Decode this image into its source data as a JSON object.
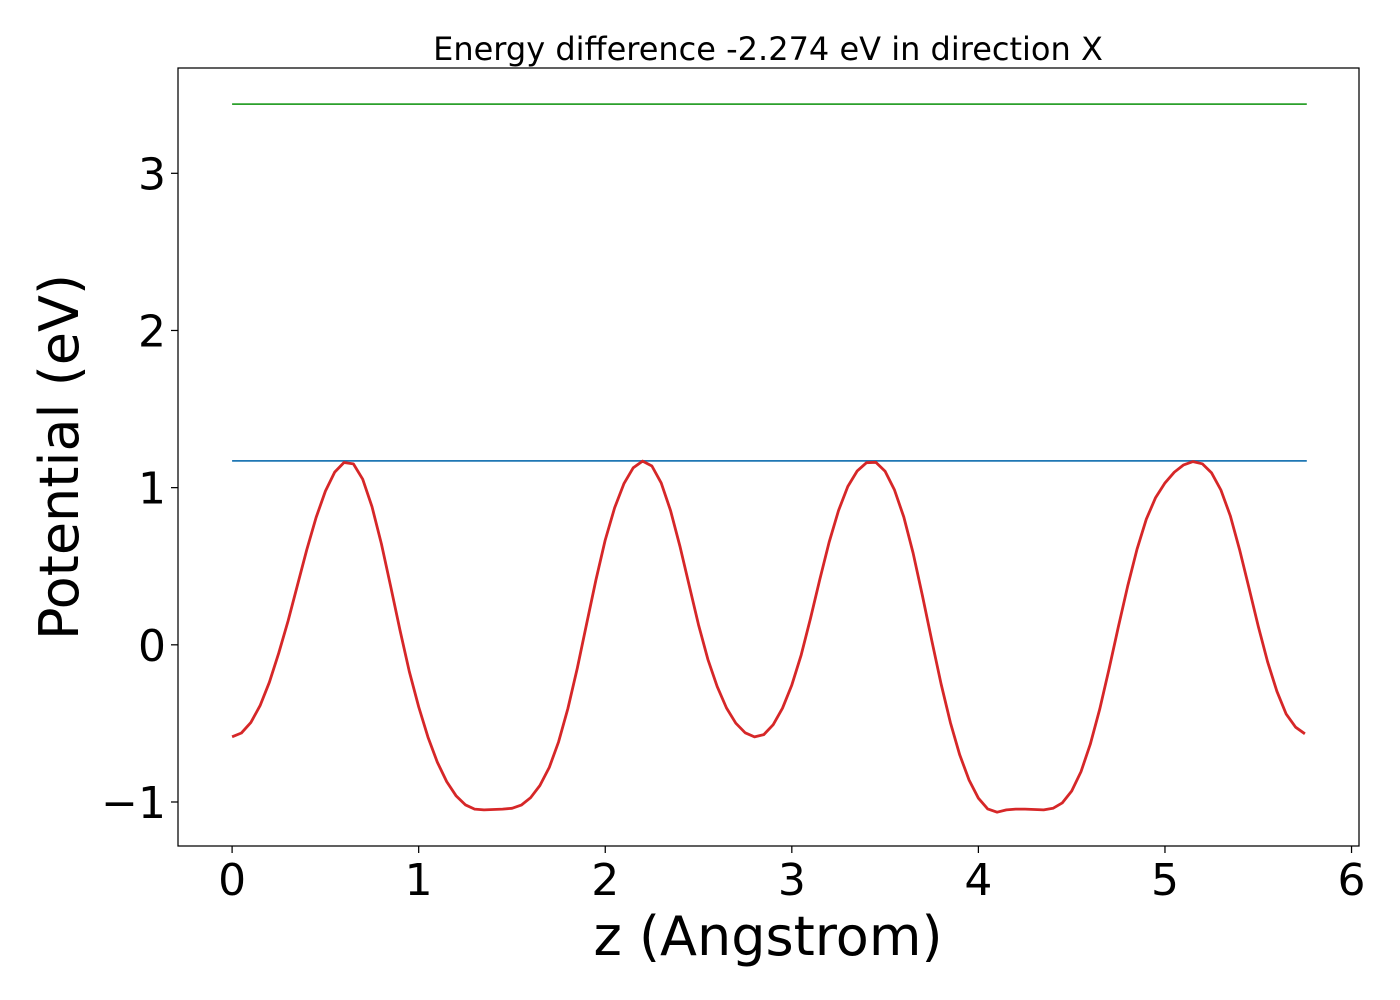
{
  "chart_data": {
    "type": "line",
    "title": "Energy difference -2.274 eV in direction X",
    "xlabel": "z (Angstrom)",
    "ylabel": "Potential (eV)",
    "xlim": [
      -0.29,
      6.04
    ],
    "ylim": [
      -1.28,
      3.67
    ],
    "xticks": [
      0,
      1,
      2,
      3,
      4,
      5,
      6
    ],
    "xtick_labels": [
      "0",
      "1",
      "2",
      "3",
      "4",
      "5",
      "6"
    ],
    "yticks": [
      -1,
      0,
      1,
      2,
      3
    ],
    "ytick_labels": [
      "−1",
      "0",
      "1",
      "2",
      "3"
    ],
    "grid": false,
    "series": [
      {
        "color": "#1f77b4",
        "x": [
          0,
          5.76
        ],
        "y": [
          1.17,
          1.17
        ]
      },
      {
        "color": "#2ca02c",
        "x": [
          0,
          5.76
        ],
        "y": [
          3.44,
          3.44
        ]
      },
      {
        "color": "#d62728",
        "x": [
          0.0,
          0.05,
          0.1,
          0.15,
          0.2,
          0.25,
          0.3,
          0.35,
          0.4,
          0.45,
          0.5,
          0.55,
          0.6,
          0.65,
          0.7,
          0.75,
          0.8,
          0.85,
          0.9,
          0.95,
          1.0,
          1.05,
          1.1,
          1.15,
          1.2,
          1.25,
          1.3,
          1.35,
          1.4,
          1.45,
          1.5,
          1.55,
          1.6,
          1.65,
          1.7,
          1.75,
          1.8,
          1.85,
          1.9,
          1.95,
          2.0,
          2.05,
          2.1,
          2.15,
          2.2,
          2.25,
          2.3,
          2.35,
          2.4,
          2.45,
          2.5,
          2.55,
          2.6,
          2.65,
          2.7,
          2.75,
          2.8,
          2.85,
          2.9,
          2.95,
          3.0,
          3.05,
          3.1,
          3.15,
          3.2,
          3.25,
          3.3,
          3.35,
          3.4,
          3.45,
          3.5,
          3.55,
          3.6,
          3.65,
          3.7,
          3.75,
          3.8,
          3.85,
          3.9,
          3.95,
          4.0,
          4.05,
          4.1,
          4.15,
          4.2,
          4.25,
          4.3,
          4.35,
          4.4,
          4.45,
          4.5,
          4.55,
          4.6,
          4.65,
          4.7,
          4.75,
          4.8,
          4.85,
          4.9,
          4.95,
          5.0,
          5.05,
          5.1,
          5.15,
          5.2,
          5.25,
          5.3,
          5.35,
          5.4,
          5.45,
          5.5,
          5.55,
          5.6,
          5.65,
          5.7,
          5.75
        ],
        "y": [
          -0.585,
          -0.561,
          -0.495,
          -0.387,
          -0.238,
          -0.053,
          0.152,
          0.378,
          0.603,
          0.81,
          0.978,
          1.099,
          1.16,
          1.151,
          1.054,
          0.879,
          0.643,
          0.371,
          0.093,
          -0.17,
          -0.395,
          -0.588,
          -0.746,
          -0.87,
          -0.96,
          -1.018,
          -1.045,
          -1.05,
          -1.048,
          -1.045,
          -1.04,
          -1.02,
          -0.973,
          -0.895,
          -0.78,
          -0.617,
          -0.405,
          -0.149,
          0.133,
          0.412,
          0.666,
          0.871,
          1.025,
          1.126,
          1.169,
          1.138,
          1.03,
          0.855,
          0.628,
          0.378,
          0.128,
          -0.093,
          -0.266,
          -0.402,
          -0.499,
          -0.56,
          -0.586,
          -0.571,
          -0.508,
          -0.403,
          -0.256,
          -0.064,
          0.168,
          0.416,
          0.652,
          0.854,
          1.007,
          1.105,
          1.159,
          1.161,
          1.104,
          0.987,
          0.813,
          0.584,
          0.313,
          0.027,
          -0.249,
          -0.495,
          -0.7,
          -0.861,
          -0.976,
          -1.044,
          -1.065,
          -1.05,
          -1.045,
          -1.045,
          -1.048,
          -1.05,
          -1.04,
          -1.005,
          -0.93,
          -0.807,
          -0.632,
          -0.41,
          -0.155,
          0.113,
          0.374,
          0.608,
          0.799,
          0.937,
          1.03,
          1.098,
          1.145,
          1.166,
          1.152,
          1.094,
          0.985,
          0.821,
          0.605,
          0.364,
          0.117,
          -0.108,
          -0.296,
          -0.441,
          -0.524,
          -0.566
        ]
      }
    ]
  }
}
